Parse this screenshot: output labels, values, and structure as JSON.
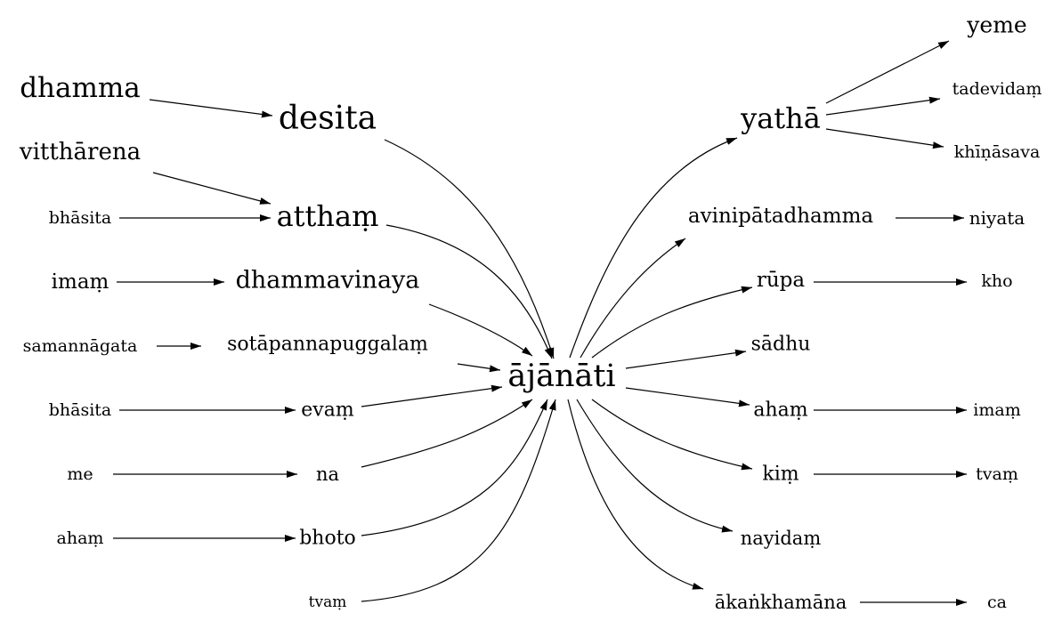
{
  "nodes": {
    "center": "ājānāti",
    "dhamma": "dhamma",
    "desita": "desita",
    "vittharena": "vitthārena",
    "attham": "atthaṃ",
    "bhasita1": "bhāsita",
    "imam1": "imaṃ",
    "dhammavinaya": "dhammavinaya",
    "samannagata": "samannāgata",
    "sotapanna": "sotāpannapuggalaṃ",
    "bhasita2": "bhāsita",
    "evam": "evaṃ",
    "me": "me",
    "na": "na",
    "aham1": "ahaṃ",
    "bhoto": "bhoto",
    "tvam1": "tvaṃ",
    "yatha": "yathā",
    "yeme": "yeme",
    "tadevidam": "tadevidaṃ",
    "khinasava": "khīṇāsava",
    "avinipata": "avinipātadhamma",
    "niyata": "niyata",
    "rupa": "rūpa",
    "kho": "kho",
    "sadhu": "sādhu",
    "aham2": "ahaṃ",
    "imam2": "imaṃ",
    "kim": "kiṃ",
    "tvam2": "tvaṃ",
    "nayidam": "nayidaṃ",
    "akankhamana": "ākaṅkhamāna",
    "ca": "ca"
  },
  "colors": {
    "ink": "#000000",
    "background": "#ffffff"
  }
}
